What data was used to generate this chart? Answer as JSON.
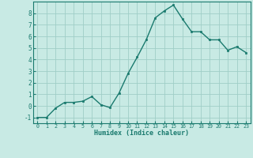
{
  "x": [
    0,
    1,
    2,
    3,
    4,
    5,
    6,
    7,
    8,
    9,
    10,
    11,
    12,
    13,
    14,
    15,
    16,
    17,
    18,
    19,
    20,
    21,
    22,
    23
  ],
  "y": [
    -1.0,
    -1.0,
    -0.2,
    0.3,
    0.3,
    0.4,
    0.8,
    0.1,
    -0.15,
    1.1,
    2.8,
    4.2,
    5.7,
    7.6,
    8.2,
    8.7,
    7.5,
    6.4,
    6.4,
    5.7,
    5.7,
    4.8,
    5.1,
    4.6
  ],
  "xlim": [
    -0.5,
    23.5
  ],
  "ylim": [
    -1.5,
    9.0
  ],
  "yticks": [
    -1,
    0,
    1,
    2,
    3,
    4,
    5,
    6,
    7,
    8
  ],
  "xticks": [
    0,
    1,
    2,
    3,
    4,
    5,
    6,
    7,
    8,
    9,
    10,
    11,
    12,
    13,
    14,
    15,
    16,
    17,
    18,
    19,
    20,
    21,
    22,
    23
  ],
  "xlabel": "Humidex (Indice chaleur)",
  "line_color": "#1a7a6e",
  "marker_color": "#1a7a6e",
  "bg_color": "#c8eae4",
  "grid_color": "#a0cec7",
  "title": ""
}
